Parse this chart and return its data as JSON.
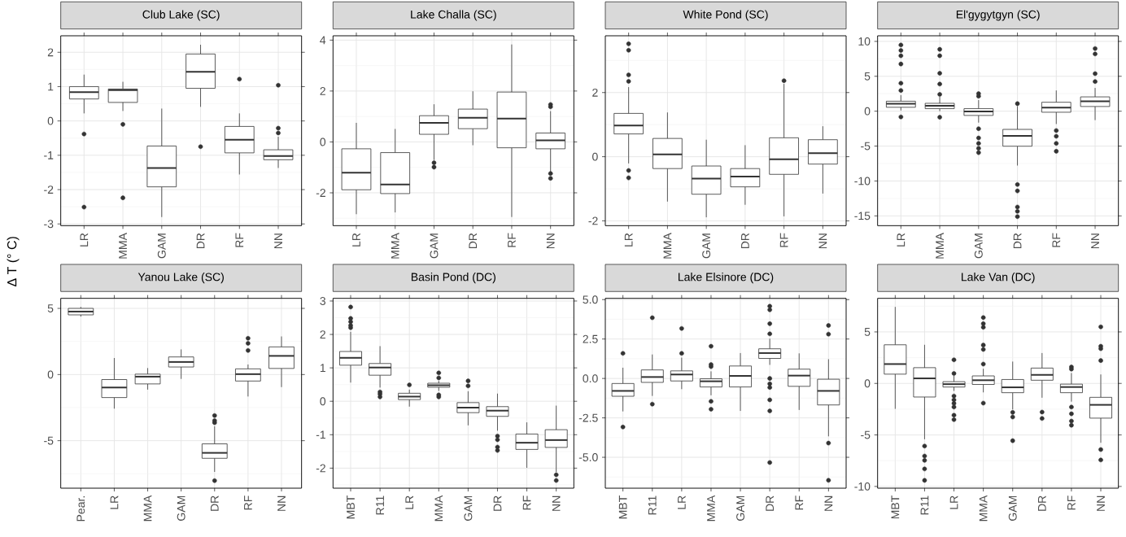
{
  "chart_data": [
    {
      "type": "box",
      "title": "Club Lake (SC)",
      "ylabel": "Δ T (° C)",
      "grid": true,
      "ylim": [
        -3.05,
        2.48
      ],
      "yticks": [
        -3,
        -2,
        -1,
        0,
        1,
        2
      ],
      "categories": [
        "LR",
        "MMA",
        "GAM",
        "DR",
        "RF",
        "NN"
      ],
      "boxes": [
        {
          "low": 0.22,
          "q1": 0.64,
          "median": 0.84,
          "q3": 1.0,
          "high": 1.35,
          "outliers": [
            -0.38,
            -2.51
          ]
        },
        {
          "low": 0.29,
          "q1": 0.54,
          "median": 0.9,
          "q3": 0.93,
          "high": 1.14,
          "outliers": [
            -0.1,
            -2.24
          ]
        },
        {
          "low": -2.8,
          "q1": -1.92,
          "median": -1.37,
          "q3": -0.73,
          "high": 0.36
        },
        {
          "low": 0.41,
          "q1": 0.95,
          "median": 1.43,
          "q3": 1.95,
          "high": 2.22,
          "outliers": [
            -0.75
          ]
        },
        {
          "low": -1.56,
          "q1": -0.93,
          "median": -0.55,
          "q3": -0.16,
          "high": 0.22,
          "outliers": [
            1.22
          ]
        },
        {
          "low": -1.37,
          "q1": -1.13,
          "median": -1.02,
          "q3": -0.84,
          "high": -0.46,
          "outliers": [
            1.04,
            -0.21,
            -0.35
          ]
        }
      ]
    },
    {
      "type": "box",
      "title": "Lake Challa (SC)",
      "grid": true,
      "ylim": [
        -3.29,
        4.17
      ],
      "yticks": [
        -2,
        0,
        2,
        4
      ],
      "categories": [
        "LR",
        "MMA",
        "GAM",
        "DR",
        "RF",
        "NN"
      ],
      "boxes": [
        {
          "low": -2.84,
          "q1": -1.88,
          "median": -1.21,
          "q3": -0.27,
          "high": 0.75
        },
        {
          "low": -2.77,
          "q1": -2.03,
          "median": -1.67,
          "q3": -0.42,
          "high": 0.51
        },
        {
          "low": -0.71,
          "q1": 0.3,
          "median": 0.75,
          "q3": 1.03,
          "high": 1.48,
          "outliers": [
            -0.82,
            -0.99
          ]
        },
        {
          "low": -0.13,
          "q1": 0.52,
          "median": 0.95,
          "q3": 1.29,
          "high": 1.99
        },
        {
          "low": -2.95,
          "q1": -0.23,
          "median": 0.92,
          "q3": 1.96,
          "high": 3.83
        },
        {
          "low": -1.17,
          "q1": -0.27,
          "median": 0.06,
          "q3": 0.35,
          "high": 1.21,
          "outliers": [
            1.47,
            1.38,
            -1.24,
            -1.43
          ]
        }
      ]
    },
    {
      "type": "box",
      "title": "White Pond (SC)",
      "grid": true,
      "ylim": [
        -2.15,
        3.77
      ],
      "yticks": [
        -2,
        0,
        2
      ],
      "categories": [
        "LR",
        "MMA",
        "GAM",
        "DR",
        "RF",
        "NN"
      ],
      "boxes": [
        {
          "low": -0.21,
          "q1": 0.71,
          "median": 0.97,
          "q3": 1.35,
          "high": 2.17,
          "outliers": [
            3.52,
            3.32,
            2.55,
            2.35,
            -0.43,
            -0.66
          ]
        },
        {
          "low": -1.4,
          "q1": -0.37,
          "median": 0.07,
          "q3": 0.57,
          "high": 1.38
        },
        {
          "low": -1.89,
          "q1": -1.17,
          "median": -0.68,
          "q3": -0.29,
          "high": 0.53
        },
        {
          "low": -1.5,
          "q1": -0.94,
          "median": -0.62,
          "q3": -0.37,
          "high": 0.36
        },
        {
          "low": -1.86,
          "q1": -0.55,
          "median": -0.08,
          "q3": 0.59,
          "high": 2.27,
          "outliers": [
            2.37
          ]
        },
        {
          "low": -1.15,
          "q1": -0.23,
          "median": 0.11,
          "q3": 0.53,
          "high": 0.95
        }
      ]
    },
    {
      "type": "box",
      "title": "El'gygytgyn (SC)",
      "grid": true,
      "ylim": [
        -16.4,
        10.8
      ],
      "yticks": [
        -15,
        -10,
        -5,
        0,
        5,
        10
      ],
      "categories": [
        "LR",
        "MMA",
        "GAM",
        "DR",
        "RF",
        "NN"
      ],
      "boxes": [
        {
          "low": 0.1,
          "q1": 0.56,
          "median": 1.08,
          "q3": 1.43,
          "high": 2.3,
          "outliers": [
            -0.82,
            2.97,
            4.0,
            6.76,
            7.94,
            8.7,
            9.48
          ]
        },
        {
          "low": 0.0,
          "q1": 0.36,
          "median": 0.77,
          "q3": 1.13,
          "high": 2.05,
          "outliers": [
            -0.87,
            2.41,
            3.89,
            5.43,
            7.94,
            8.86
          ]
        },
        {
          "low": -1.64,
          "q1": -0.61,
          "median": -0.05,
          "q3": 0.36,
          "high": 1.59,
          "outliers": [
            2.51,
            2.15,
            -2.51,
            -3.84,
            -4.61,
            -5.33,
            -5.94
          ]
        },
        {
          "low": -7.79,
          "q1": -5.02,
          "median": -3.53,
          "q3": -2.61,
          "high": 0.72,
          "outliers": [
            1.08,
            -10.5,
            -11.42,
            -13.73,
            -14.34,
            -15.11
          ]
        },
        {
          "low": -1.84,
          "q1": -0.15,
          "median": 0.51,
          "q3": 1.28,
          "high": 2.97,
          "outliers": [
            -2.77,
            -3.59,
            -4.61,
            -5.74
          ]
        },
        {
          "low": -1.28,
          "q1": 0.67,
          "median": 1.43,
          "q3": 2.05,
          "high": 3.33,
          "outliers": [
            4.25,
            5.38,
            8.2,
            8.97
          ]
        }
      ]
    },
    {
      "type": "box",
      "title": "Yanou Lake (SC)",
      "grid": true,
      "ylim": [
        -8.59,
        5.76
      ],
      "yticks": [
        -5,
        0,
        5
      ],
      "categories": [
        "Pear.",
        "LR",
        "MMA",
        "GAM",
        "DR",
        "RF",
        "NN"
      ],
      "boxes": [
        {
          "low": 4.38,
          "q1": 4.51,
          "median": 4.76,
          "q3": 5.0,
          "high": 5.11
        },
        {
          "low": -2.58,
          "q1": -1.74,
          "median": -0.98,
          "q3": -0.38,
          "high": 1.25
        },
        {
          "low": -1.14,
          "q1": -0.71,
          "median": -0.16,
          "q3": 0.03,
          "high": 0.49
        },
        {
          "low": -0.33,
          "q1": 0.57,
          "median": 0.95,
          "q3": 1.33,
          "high": 1.9
        },
        {
          "low": -7.36,
          "q1": -6.33,
          "median": -5.92,
          "q3": -5.24,
          "high": -3.91,
          "outliers": [
            -3.1,
            -3.48,
            -3.64,
            -8.02
          ]
        },
        {
          "low": -1.66,
          "q1": -0.49,
          "median": 0.03,
          "q3": 0.43,
          "high": 0.76,
          "outliers": [
            1.82,
            2.36,
            2.74
          ]
        },
        {
          "low": -0.95,
          "q1": 0.46,
          "median": 1.41,
          "q3": 2.09,
          "high": 2.88
        }
      ]
    },
    {
      "type": "box",
      "title": "Basin Pond (DC)",
      "grid": true,
      "ylim": [
        -2.6,
        3.08
      ],
      "yticks": [
        -2,
        -1,
        0,
        1,
        2,
        3
      ],
      "categories": [
        "MBT",
        "R11",
        "LR",
        "MMA",
        "GAM",
        "DR",
        "RF",
        "NN"
      ],
      "boxes": [
        {
          "low": 0.56,
          "q1": 1.08,
          "median": 1.3,
          "q3": 1.49,
          "high": 2.08,
          "outliers": [
            2.82,
            2.48,
            2.38,
            2.27,
            2.2
          ]
        },
        {
          "low": 0.41,
          "q1": 0.78,
          "median": 1.01,
          "q3": 1.13,
          "high": 1.65,
          "outliers": [
            0.28,
            0.22,
            0.13
          ]
        },
        {
          "low": -0.16,
          "q1": 0.05,
          "median": 0.14,
          "q3": 0.24,
          "high": 0.35,
          "outliers": [
            0.49
          ]
        },
        {
          "low": 0.31,
          "q1": 0.42,
          "median": 0.48,
          "q3": 0.54,
          "high": 0.61,
          "outliers": [
            0.85,
            0.7,
            0.19,
            0.13
          ]
        },
        {
          "low": -0.72,
          "q1": -0.34,
          "median": -0.19,
          "q3": -0.04,
          "high": 0.3,
          "outliers": [
            0.61,
            0.46
          ]
        },
        {
          "low": -0.88,
          "q1": -0.45,
          "median": -0.28,
          "q3": -0.16,
          "high": 0.23,
          "outliers": [
            -1.04,
            -1.15,
            -1.37,
            -1.47
          ]
        },
        {
          "low": -1.99,
          "q1": -1.44,
          "median": -1.24,
          "q3": -0.98,
          "high": -0.63
        },
        {
          "low": -2.12,
          "q1": -1.38,
          "median": -1.16,
          "q3": -0.85,
          "high": -0.13,
          "outliers": [
            -2.2,
            -2.37
          ]
        }
      ]
    },
    {
      "type": "box",
      "title": "Lake Elsinore (DC)",
      "grid": true,
      "ylim": [
        -6.96,
        5.08
      ],
      "yticks": [
        {
          "value": -5,
          "label": "-5.0"
        },
        -2.5,
        {
          "value": 0,
          "label": "0.0"
        },
        2.5,
        {
          "value": 5,
          "label": "5.0"
        }
      ],
      "categories": [
        "MBT",
        "R11",
        "LR",
        "MMA",
        "GAM",
        "DR",
        "RF",
        "NN"
      ],
      "boxes": [
        {
          "low": -2.09,
          "q1": -1.13,
          "median": -0.79,
          "q3": -0.32,
          "high": 0.68,
          "outliers": [
            1.59,
            -3.08
          ]
        },
        {
          "low": -1.11,
          "q1": -0.25,
          "median": 0.09,
          "q3": 0.54,
          "high": 1.52,
          "outliers": [
            3.85,
            -1.63
          ]
        },
        {
          "low": -0.68,
          "q1": -0.16,
          "median": 0.25,
          "q3": 0.48,
          "high": 1.32,
          "outliers": [
            3.17,
            1.59
          ]
        },
        {
          "low": -1.07,
          "q1": -0.54,
          "median": -0.18,
          "q3": -0.02,
          "high": 0.45,
          "outliers": [
            2.04,
            0.88,
            0.75,
            -1.45,
            -1.95
          ]
        },
        {
          "low": -2.06,
          "q1": -0.54,
          "median": 0.16,
          "q3": 0.79,
          "high": 1.61
        },
        {
          "low": 0.86,
          "q1": 1.27,
          "median": 1.61,
          "q3": 1.88,
          "high": 2.52,
          "outliers": [
            4.58,
            4.35,
            3.47,
            2.83,
            0.0,
            -0.34,
            -0.57,
            -1.36,
            -2.06,
            -5.33
          ]
        },
        {
          "low": -2.0,
          "q1": -0.5,
          "median": 0.18,
          "q3": 0.59,
          "high": 1.59
        },
        {
          "low": -3.67,
          "q1": -1.68,
          "median": -0.79,
          "q3": -0.05,
          "high": 1.22,
          "outliers": [
            3.36,
            2.81,
            -4.1,
            -6.46
          ]
        }
      ]
    },
    {
      "type": "box",
      "title": "Lake Van (DC)",
      "grid": true,
      "ylim": [
        -10.17,
        8.26
      ],
      "yticks": [
        -10,
        -5,
        0,
        5
      ],
      "categories": [
        "MBT",
        "R11",
        "LR",
        "MMA",
        "GAM",
        "DR",
        "RF",
        "NN"
      ],
      "boxes": [
        {
          "low": -2.47,
          "q1": 0.9,
          "median": 1.88,
          "q3": 3.75,
          "high": 7.43
        },
        {
          "low": -5.42,
          "q1": -1.32,
          "median": 0.49,
          "q3": 1.53,
          "high": 3.75,
          "outliers": [
            -6.08,
            -7.05,
            -7.47,
            -8.3,
            -9.41
          ]
        },
        {
          "low": -0.73,
          "q1": -0.35,
          "median": -0.07,
          "q3": 0.17,
          "high": 0.76,
          "outliers": [
            2.29,
            0.97,
            -1.22,
            -1.6,
            -1.94,
            -2.29,
            -3.09,
            -3.51
          ]
        },
        {
          "low": -0.87,
          "q1": -0.1,
          "median": 0.31,
          "q3": 0.73,
          "high": 1.42,
          "outliers": [
            1.88,
            3.3,
            3.72,
            5.45,
            5.8,
            6.39,
            -1.91
          ]
        },
        {
          "low": -2.53,
          "q1": -0.9,
          "median": -0.38,
          "q3": 0.38,
          "high": 2.12,
          "outliers": [
            -2.81,
            -3.26,
            -5.56
          ]
        },
        {
          "low": -1.39,
          "q1": 0.31,
          "median": 0.83,
          "q3": 1.49,
          "high": 2.95,
          "outliers": [
            -2.78,
            -3.4
          ]
        },
        {
          "low": -1.77,
          "q1": -0.9,
          "median": -0.35,
          "q3": -0.07,
          "high": 1.01,
          "outliers": [
            1.6,
            1.39,
            -2.29,
            -2.95,
            -3.65,
            -4.06
          ]
        },
        {
          "low": -5.76,
          "q1": -3.37,
          "median": -2.08,
          "q3": -1.35,
          "high": 0.87,
          "outliers": [
            5.49,
            3.61,
            3.37,
            2.22,
            -6.42,
            -7.43
          ]
        }
      ]
    }
  ]
}
